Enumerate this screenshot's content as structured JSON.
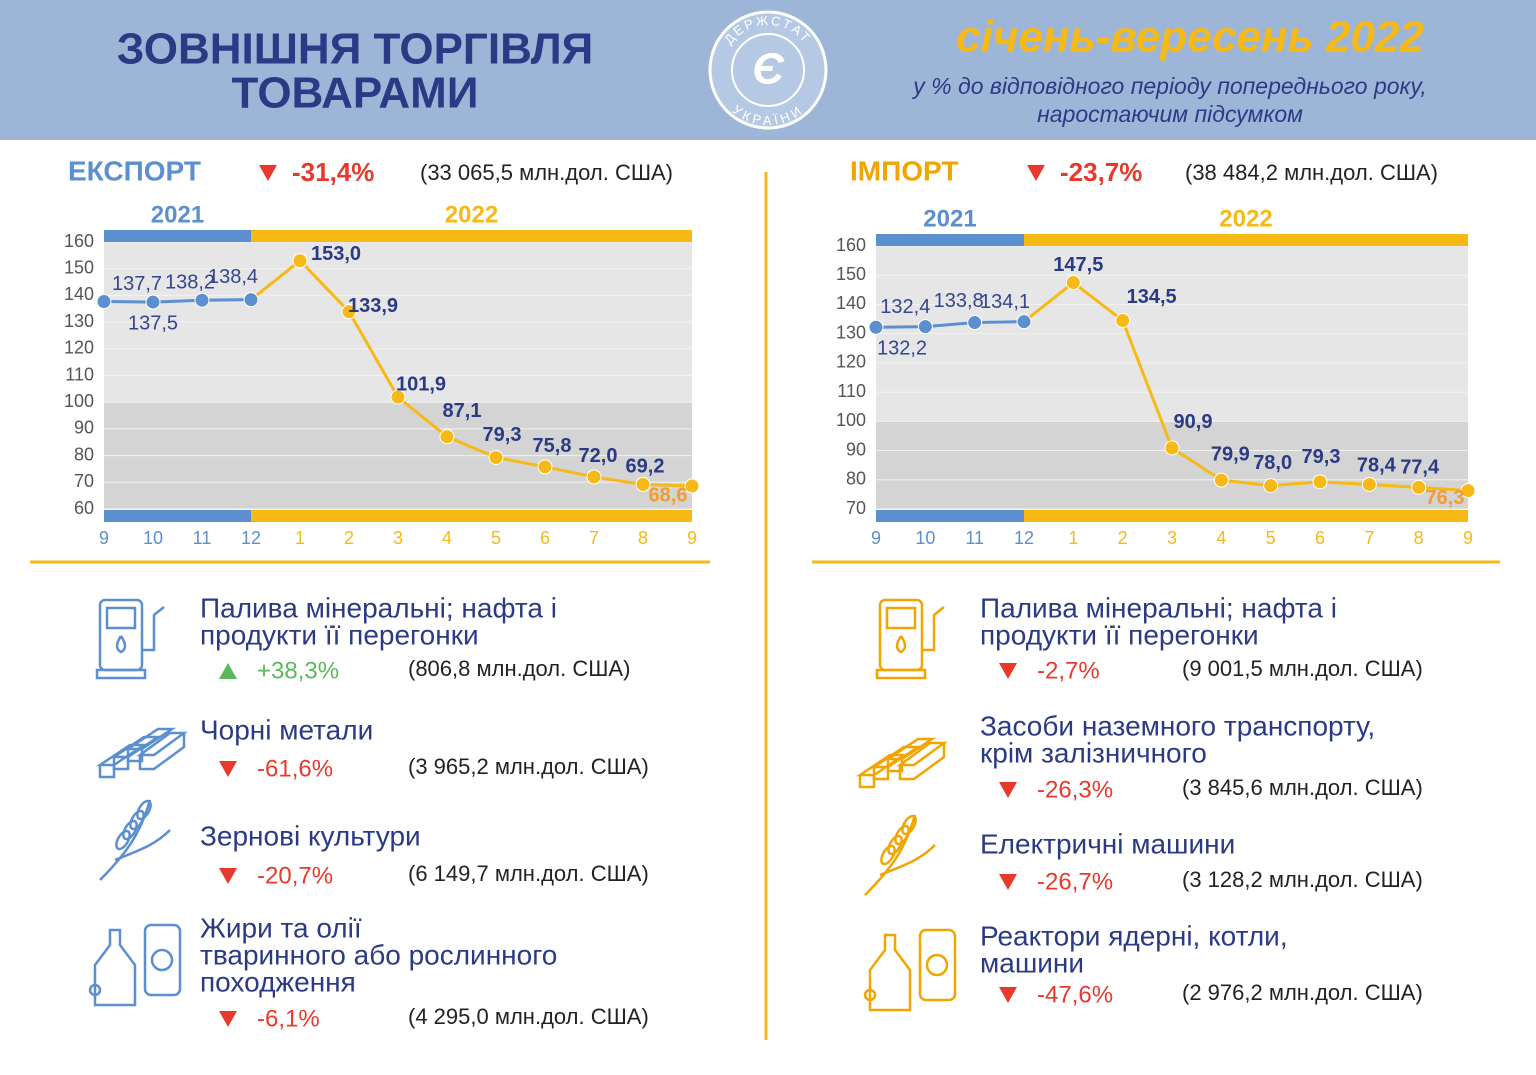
{
  "header": {
    "title": [
      "ЗОВНІШНЯ ТОРГІВЛЯ",
      "ТОВАРАМИ"
    ],
    "logo": {
      "top": "ДЕРЖСТАТ",
      "bottom": "УКРАЇНИ",
      "mark": "Є"
    },
    "period": "січень-вересень 2022",
    "subtitle": [
      "у % до відповідного періоду попереднього року,",
      "наростаючим підсумком"
    ]
  },
  "sections": [
    {
      "label": "ЕКСПОРТ",
      "change": "-31,4%",
      "amount": "(33 065,5 млн.дол. США)",
      "color": "#5b8fd0",
      "items": [
        {
          "lines": [
            "Палива мінеральні; нафта і",
            "продукти її перегонки"
          ],
          "change": "+38,3%",
          "amount": "(806,8 млн.дол. США)",
          "trend": "up"
        },
        {
          "lines": [
            "Чорні метали"
          ],
          "change": "-61,6%",
          "amount": "(3 965,2 млн.дол. США)",
          "trend": "down"
        },
        {
          "lines": [
            "Зернові культури"
          ],
          "change": "-20,7%",
          "amount": "(6 149,7 млн.дол. США)",
          "trend": "down"
        },
        {
          "lines": [
            "Жири та олії",
            "тваринного або рослинного",
            "походження"
          ],
          "change": "-6,1%",
          "amount": "(4 295,0 млн.дол. США)",
          "trend": "down"
        }
      ]
    },
    {
      "label": "ІМПОРТ",
      "change": "-23,7%",
      "amount": "(38 484,2 млн.дол. США)",
      "color": "#f0a500",
      "items": [
        {
          "lines": [
            "Палива мінеральні; нафта і",
            "продукти її перегонки"
          ],
          "change": "-2,7%",
          "amount": "(9 001,5 млн.дол. США)",
          "trend": "down"
        },
        {
          "lines": [
            "Засоби наземного транспорту,",
            "крім залізничного"
          ],
          "change": "-26,3%",
          "amount": "(3 845,6 млн.дол. США)",
          "trend": "down"
        },
        {
          "lines": [
            "Електричні машини"
          ],
          "change": "-26,7%",
          "amount": "(3 128,2 млн.дол. США)",
          "trend": "down"
        },
        {
          "lines": [
            "Реактори ядерні, котли,",
            "машини"
          ],
          "change": "-47,6%",
          "amount": "(2 976,2 млн.дол. США)",
          "trend": "down"
        }
      ]
    }
  ],
  "chart_data": [
    {
      "type": "line",
      "categories": [
        "9",
        "10",
        "11",
        "12",
        "1",
        "2",
        "3",
        "4",
        "5",
        "6",
        "7",
        "8",
        "9"
      ],
      "series": [
        {
          "name": "2021",
          "color": "#5b8fd0",
          "values": [
            137.7,
            137.5,
            138.2,
            138.4,
            null,
            null,
            null,
            null,
            null,
            null,
            null,
            null,
            null
          ],
          "value_labels": [
            "137,7",
            "137,5",
            "138,2",
            "138,4",
            null,
            null,
            null,
            null,
            null,
            null,
            null,
            null,
            null
          ]
        },
        {
          "name": "2022",
          "color": "#f6b915",
          "values": [
            null,
            null,
            null,
            null,
            153.0,
            133.9,
            101.9,
            87.1,
            79.3,
            75.8,
            72.0,
            69.2,
            68.6
          ],
          "value_labels": [
            null,
            null,
            null,
            null,
            "153,0",
            "133,9",
            "101,9",
            "87,1",
            "79,3",
            "75,8",
            "72,0",
            "69,2",
            "68,6"
          ]
        }
      ],
      "ylim": [
        60,
        160
      ],
      "yticks": [
        60,
        70,
        80,
        90,
        100,
        110,
        120,
        130,
        140,
        150,
        160
      ],
      "shade_below": 100
    },
    {
      "type": "line",
      "categories": [
        "9",
        "10",
        "11",
        "12",
        "1",
        "2",
        "3",
        "4",
        "5",
        "6",
        "7",
        "8",
        "9"
      ],
      "series": [
        {
          "name": "2021",
          "color": "#5b8fd0",
          "values": [
            132.2,
            132.4,
            133.8,
            134.1,
            null,
            null,
            null,
            null,
            null,
            null,
            null,
            null,
            null
          ],
          "value_labels": [
            "132,2",
            "132,4",
            "133,8",
            "134,1",
            null,
            null,
            null,
            null,
            null,
            null,
            null,
            null,
            null
          ]
        },
        {
          "name": "2022",
          "color": "#f6b915",
          "values": [
            null,
            null,
            null,
            null,
            147.5,
            134.5,
            90.9,
            79.9,
            78.0,
            79.3,
            78.4,
            77.4,
            76.3
          ],
          "value_labels": [
            null,
            null,
            null,
            null,
            "147,5",
            "134,5",
            "90,9",
            "79,9",
            "78,0",
            "79,3",
            "78,4",
            "77,4",
            "76,3"
          ]
        }
      ],
      "ylim": [
        70,
        160
      ],
      "yticks": [
        70,
        80,
        90,
        100,
        110,
        120,
        130,
        140,
        150,
        160
      ],
      "shade_below": 100
    }
  ]
}
